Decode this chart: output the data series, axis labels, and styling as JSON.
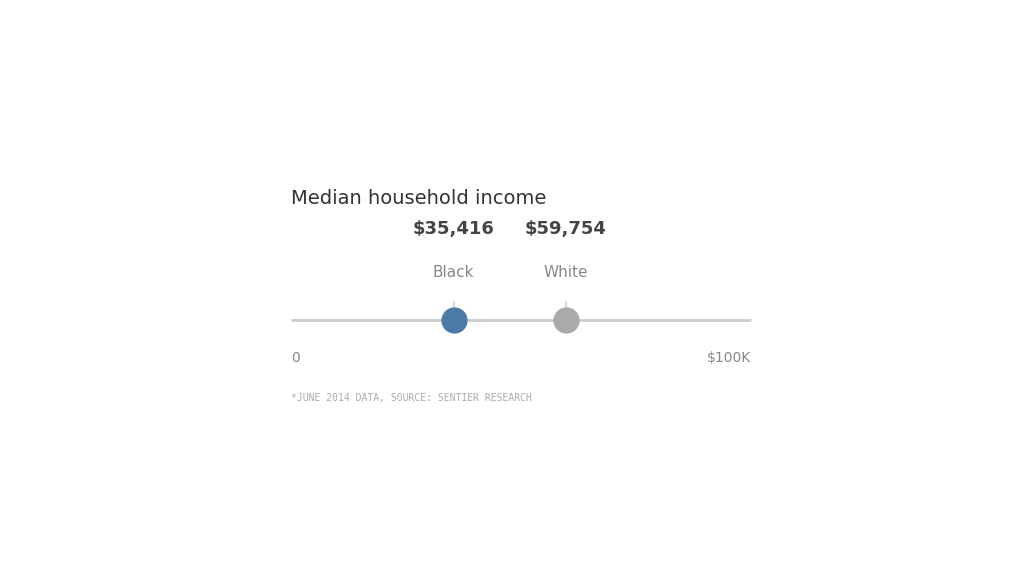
{
  "title": "Median household income",
  "black_value": 35416,
  "white_value": 59754,
  "black_label": "Black",
  "white_label": "White",
  "black_text": "$35,416",
  "white_text": "$59,754",
  "black_color": "#4a7ba7",
  "white_color": "#aaaaaa",
  "line_color": "#cccccc",
  "axis_min": 0,
  "axis_max": 100000,
  "axis_label_min": "0",
  "axis_label_max": "$100K",
  "footnote": "*JUNE 2014 DATA, SOURCE: SENTIER RESEARCH",
  "background_color": "#ffffff",
  "title_color": "#333333",
  "label_color": "#888888",
  "value_color": "#444444",
  "footnote_color": "#aaaaaa",
  "title_fontsize": 14,
  "value_fontsize": 13,
  "label_fontsize": 11,
  "axis_tick_fontsize": 10,
  "footnote_fontsize": 7,
  "line_width": 2.0
}
